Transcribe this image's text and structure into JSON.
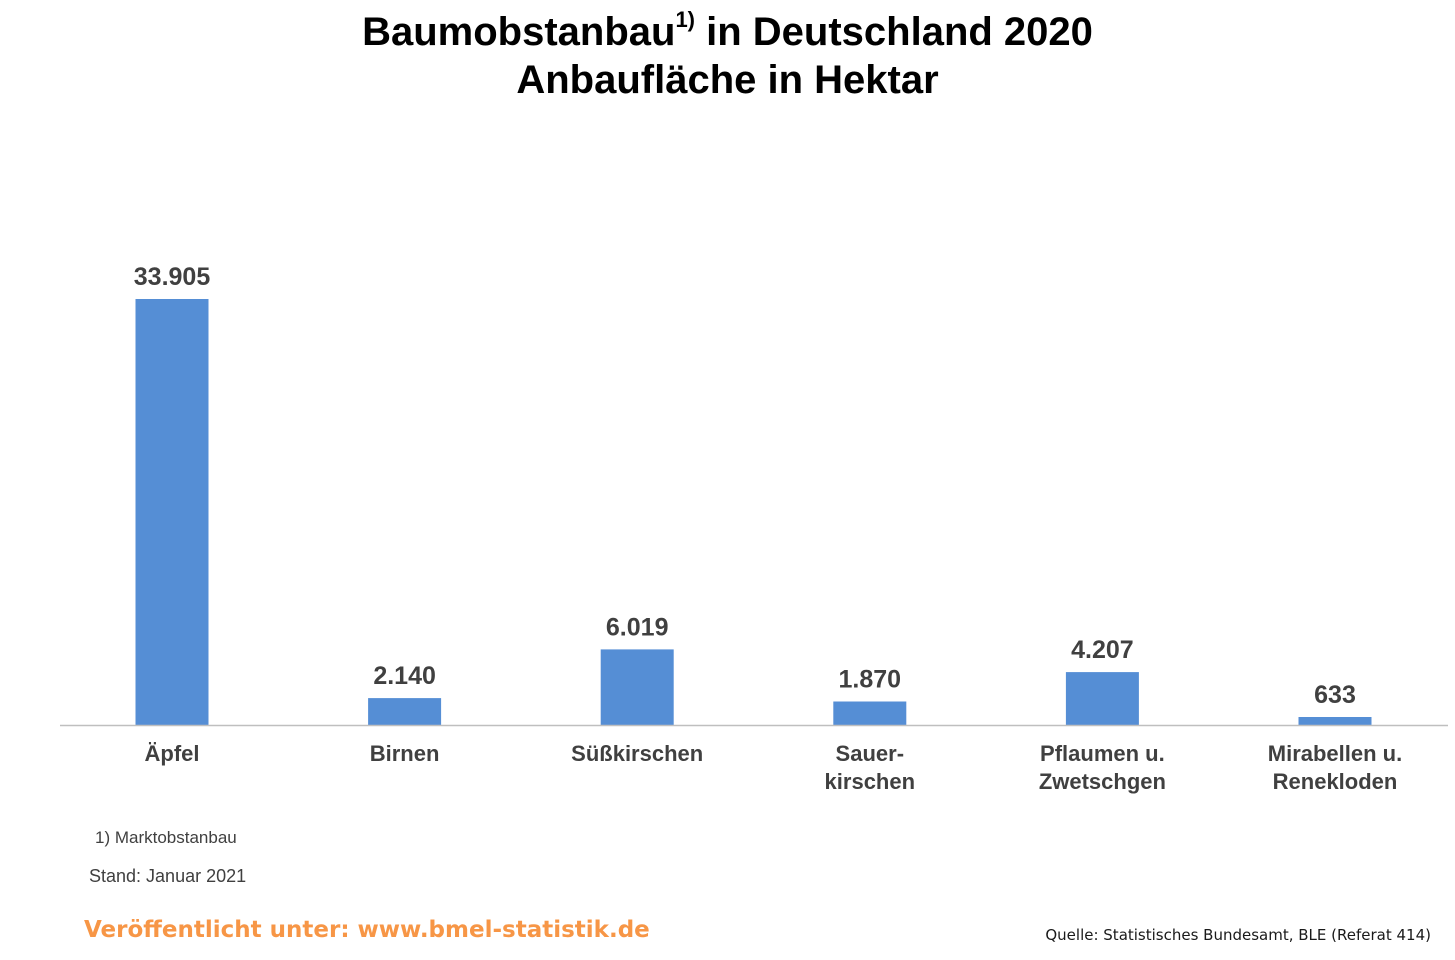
{
  "title": {
    "line1_main": "Baumobstanbau",
    "line1_sup": "1)",
    "line1_rest": " in Deutschland 2020",
    "line2": "Anbaufläche in Hektar"
  },
  "chart_data": {
    "type": "bar",
    "categories": [
      [
        "Äpfel"
      ],
      [
        "Birnen"
      ],
      [
        "Süßkirschen"
      ],
      [
        "Sauer-",
        "kirschen"
      ],
      [
        "Pflaumen u.",
        "Zwetschgen"
      ],
      [
        "Mirabellen u.",
        "Renekloden"
      ]
    ],
    "values": [
      33905,
      2140,
      6019,
      1870,
      4207,
      633
    ],
    "value_labels": [
      "33.905",
      "2.140",
      "6.019",
      "1.870",
      "4.207",
      "633"
    ],
    "ylim": [
      0,
      33905
    ],
    "grid": false,
    "legend": "none",
    "bar_color": "#558ed5"
  },
  "footnote": "1)  Marktobstanbau",
  "stand": "Stand: Januar 2021",
  "published": "Veröffentlicht unter: www.bmel-statistik.de",
  "published_color": "#f79646",
  "source": "Quelle: Statistisches Bundesamt, BLE (Referat 414)"
}
